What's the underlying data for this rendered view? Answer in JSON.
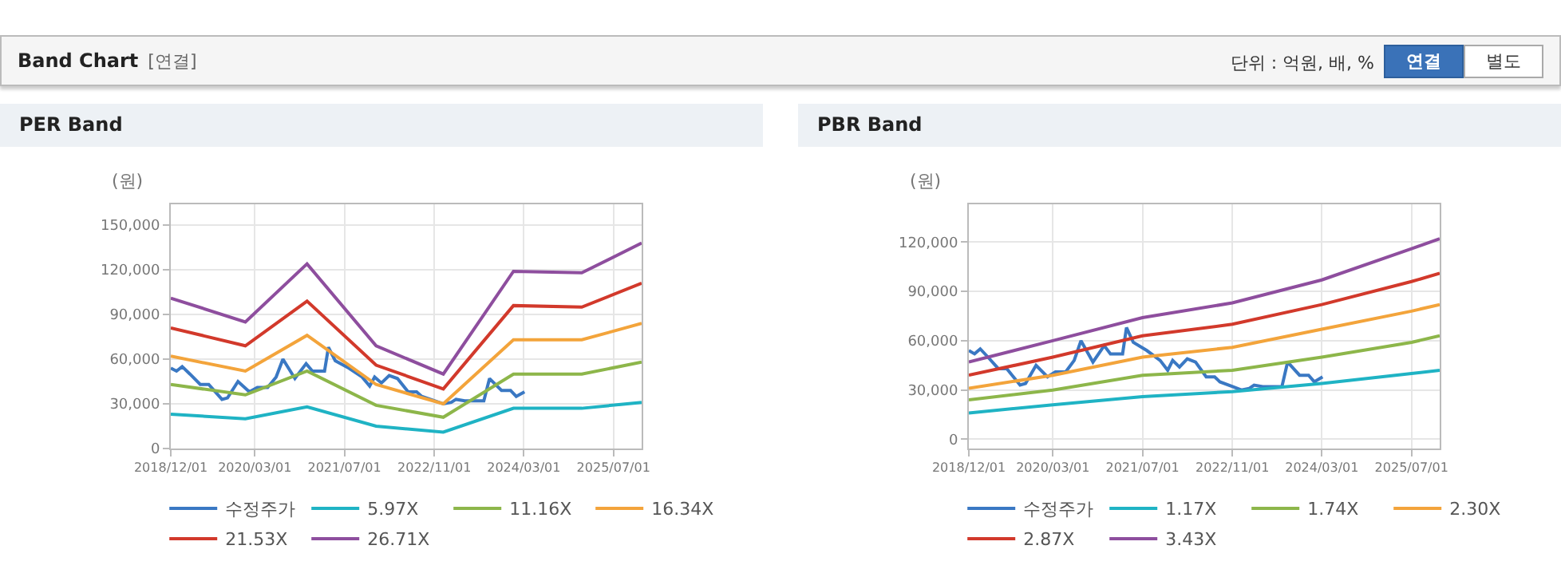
{
  "chart_data": [
    {
      "type": "line",
      "title": "PER Band",
      "ylabel": "(원)",
      "annotations": [
        "Band Chart",
        "[연결]",
        "단위 : 억원, 배, %",
        "연결",
        "별도"
      ],
      "xlim": [
        "2018-12-01",
        "2025-12-01"
      ],
      "xticks": [
        {
          "value": "2018-12-01",
          "label": "2018/12/01"
        },
        {
          "value": "2020-03-01",
          "label": "2020/03/01"
        },
        {
          "value": "2021-07-01",
          "label": "2021/07/01"
        },
        {
          "value": "2022-11-01",
          "label": "2022/11/01"
        },
        {
          "value": "2024-03-01",
          "label": "2024/03/01"
        },
        {
          "value": "2025-07-01",
          "label": "2025/07/01"
        }
      ],
      "ylim": [
        0,
        164000
      ],
      "yticks": [
        {
          "value": 0,
          "label": "0"
        },
        {
          "value": 30000,
          "label": "30,000"
        },
        {
          "value": 60000,
          "label": "60,000"
        },
        {
          "value": 90000,
          "label": "90,000"
        },
        {
          "value": 120000,
          "label": "120,000"
        },
        {
          "value": 150000,
          "label": "150,000"
        }
      ],
      "grid": true,
      "legend": "bottom",
      "marker": "none",
      "line_style": "solid",
      "series": [
        {
          "name": "수정주가",
          "color": "#3a78c3",
          "x": [
            "2018-12-01",
            "2019-01-01",
            "2019-02-01",
            "2019-03-15",
            "2019-05-10",
            "2019-06-25",
            "2019-09-05",
            "2019-10-05",
            "2019-12-01",
            "2020-02-01",
            "2020-03-15",
            "2020-05-10",
            "2020-06-25",
            "2020-08-01",
            "2020-10-05",
            "2020-12-05",
            "2021-01-08",
            "2021-03-15",
            "2021-04-05",
            "2021-05-12",
            "2021-07-25",
            "2021-10-05",
            "2021-11-15",
            "2021-12-12",
            "2022-01-18",
            "2022-03-01",
            "2022-04-15",
            "2022-06-12",
            "2022-07-28",
            "2022-08-25",
            "2022-11-05",
            "2022-12-20",
            "2023-02-01",
            "2023-02-27",
            "2023-04-15",
            "2023-07-28",
            "2023-08-28",
            "2023-11-01",
            "2023-12-20",
            "2024-01-20",
            "2024-03-05"
          ],
          "values": [
            54000,
            52000,
            55000,
            50000,
            43000,
            43000,
            33000,
            34000,
            45000,
            38000,
            41000,
            41000,
            48000,
            60000,
            47000,
            57000,
            52000,
            52000,
            68000,
            59000,
            54000,
            48000,
            42000,
            48000,
            44000,
            49000,
            47000,
            38000,
            38000,
            35000,
            32000,
            30000,
            31000,
            33000,
            32000,
            32000,
            47000,
            39000,
            39000,
            35000,
            38000
          ]
        },
        {
          "name": "5.97X",
          "color": "#1fb3c4",
          "x": [
            "2018-12-01",
            "2020-01-10",
            "2020-12-10",
            "2021-12-20",
            "2022-12-20",
            "2024-01-05",
            "2025-01-10",
            "2025-12-01"
          ],
          "values": [
            23000,
            20000,
            28000,
            15000,
            11000,
            27000,
            27000,
            31000
          ]
        },
        {
          "name": "11.16X",
          "color": "#8db64a",
          "x": [
            "2018-12-01",
            "2020-01-10",
            "2020-12-10",
            "2021-12-20",
            "2022-12-20",
            "2024-01-05",
            "2025-01-10",
            "2025-12-01"
          ],
          "values": [
            43000,
            36000,
            52000,
            29000,
            21000,
            50000,
            50000,
            58000
          ]
        },
        {
          "name": "16.34X",
          "color": "#f3a43b",
          "x": [
            "2018-12-01",
            "2020-01-10",
            "2020-12-10",
            "2021-12-20",
            "2022-12-20",
            "2024-01-05",
            "2025-01-10",
            "2025-12-01"
          ],
          "values": [
            62000,
            52000,
            76000,
            43000,
            30000,
            73000,
            73000,
            84000
          ]
        },
        {
          "name": "21.53X",
          "color": "#d2392b",
          "x": [
            "2018-12-01",
            "2020-01-10",
            "2020-12-10",
            "2021-12-20",
            "2022-12-20",
            "2024-01-05",
            "2025-01-10",
            "2025-12-01"
          ],
          "values": [
            81000,
            69000,
            99000,
            56000,
            40000,
            96000,
            95000,
            111000
          ]
        },
        {
          "name": "26.71X",
          "color": "#8e4e9e",
          "x": [
            "2018-12-01",
            "2020-01-10",
            "2020-12-10",
            "2021-12-20",
            "2022-12-20",
            "2024-01-05",
            "2025-01-10",
            "2025-12-01"
          ],
          "values": [
            101000,
            85000,
            124000,
            69000,
            50000,
            119000,
            118000,
            138000
          ]
        }
      ]
    },
    {
      "type": "line",
      "title": "PBR Band",
      "ylabel": "(원)",
      "xlim": [
        "2018-12-01",
        "2025-12-01"
      ],
      "xticks": [
        {
          "value": "2018-12-01",
          "label": "2018/12/01"
        },
        {
          "value": "2020-03-01",
          "label": "2020/03/01"
        },
        {
          "value": "2021-07-01",
          "label": "2021/07/01"
        },
        {
          "value": "2022-11-01",
          "label": "2022/11/01"
        },
        {
          "value": "2024-03-01",
          "label": "2024/03/01"
        },
        {
          "value": "2025-07-01",
          "label": "2025/07/01"
        }
      ],
      "ylim": [
        -5600,
        143000
      ],
      "yticks": [
        {
          "value": 0,
          "label": "0"
        },
        {
          "value": 30000,
          "label": "30,000"
        },
        {
          "value": 60000,
          "label": "60,000"
        },
        {
          "value": 90000,
          "label": "90,000"
        },
        {
          "value": 120000,
          "label": "120,000"
        }
      ],
      "grid": true,
      "legend": "bottom",
      "marker": "none",
      "line_style": "solid",
      "series": [
        {
          "name": "수정주가",
          "color": "#3a78c3",
          "x": [
            "2018-12-01",
            "2019-01-01",
            "2019-02-01",
            "2019-03-15",
            "2019-05-10",
            "2019-06-25",
            "2019-09-05",
            "2019-10-05",
            "2019-12-01",
            "2020-02-01",
            "2020-03-15",
            "2020-05-10",
            "2020-06-25",
            "2020-08-01",
            "2020-10-05",
            "2020-12-05",
            "2021-01-08",
            "2021-03-15",
            "2021-04-05",
            "2021-05-12",
            "2021-07-25",
            "2021-10-05",
            "2021-11-15",
            "2021-12-12",
            "2022-01-18",
            "2022-03-01",
            "2022-04-15",
            "2022-06-12",
            "2022-07-28",
            "2022-08-25",
            "2022-11-05",
            "2022-12-20",
            "2023-02-01",
            "2023-02-27",
            "2023-04-15",
            "2023-07-28",
            "2023-08-28",
            "2023-11-01",
            "2023-12-20",
            "2024-01-20",
            "2024-03-05"
          ],
          "values": [
            54000,
            52000,
            55000,
            50000,
            43000,
            43000,
            33000,
            34000,
            45000,
            38000,
            41000,
            41000,
            48000,
            60000,
            47000,
            57000,
            52000,
            52000,
            68000,
            59000,
            54000,
            48000,
            42000,
            48000,
            44000,
            49000,
            47000,
            38000,
            38000,
            35000,
            32000,
            30000,
            31000,
            33000,
            32000,
            32000,
            47000,
            39000,
            39000,
            35000,
            38000
          ]
        },
        {
          "name": "1.17X",
          "color": "#1fb3c4",
          "x": [
            "2018-12-01",
            "2020-03-01",
            "2021-07-01",
            "2022-11-01",
            "2024-03-01",
            "2025-07-01",
            "2025-12-01"
          ],
          "values": [
            16000,
            21000,
            26000,
            29000,
            34000,
            40000,
            42000
          ]
        },
        {
          "name": "1.74X",
          "color": "#8db64a",
          "x": [
            "2018-12-01",
            "2020-03-01",
            "2021-07-01",
            "2022-11-01",
            "2024-03-01",
            "2025-07-01",
            "2025-12-01"
          ],
          "values": [
            24000,
            30000,
            39000,
            42000,
            50000,
            59000,
            63000
          ]
        },
        {
          "name": "2.30X",
          "color": "#f3a43b",
          "x": [
            "2018-12-01",
            "2020-03-01",
            "2021-07-01",
            "2022-11-01",
            "2024-03-01",
            "2025-07-01",
            "2025-12-01"
          ],
          "values": [
            31000,
            39000,
            50000,
            56000,
            67000,
            78000,
            82000
          ]
        },
        {
          "name": "2.87X",
          "color": "#d2392b",
          "x": [
            "2018-12-01",
            "2020-03-01",
            "2021-07-01",
            "2022-11-01",
            "2024-03-01",
            "2025-07-01",
            "2025-12-01"
          ],
          "values": [
            39000,
            50000,
            63000,
            70000,
            82000,
            96000,
            101000
          ]
        },
        {
          "name": "3.43X",
          "color": "#8e4e9e",
          "x": [
            "2018-12-01",
            "2020-03-01",
            "2021-07-01",
            "2022-11-01",
            "2024-03-01",
            "2025-07-01",
            "2025-12-01"
          ],
          "values": [
            47000,
            60000,
            74000,
            83000,
            97000,
            116000,
            122000
          ]
        }
      ]
    }
  ]
}
